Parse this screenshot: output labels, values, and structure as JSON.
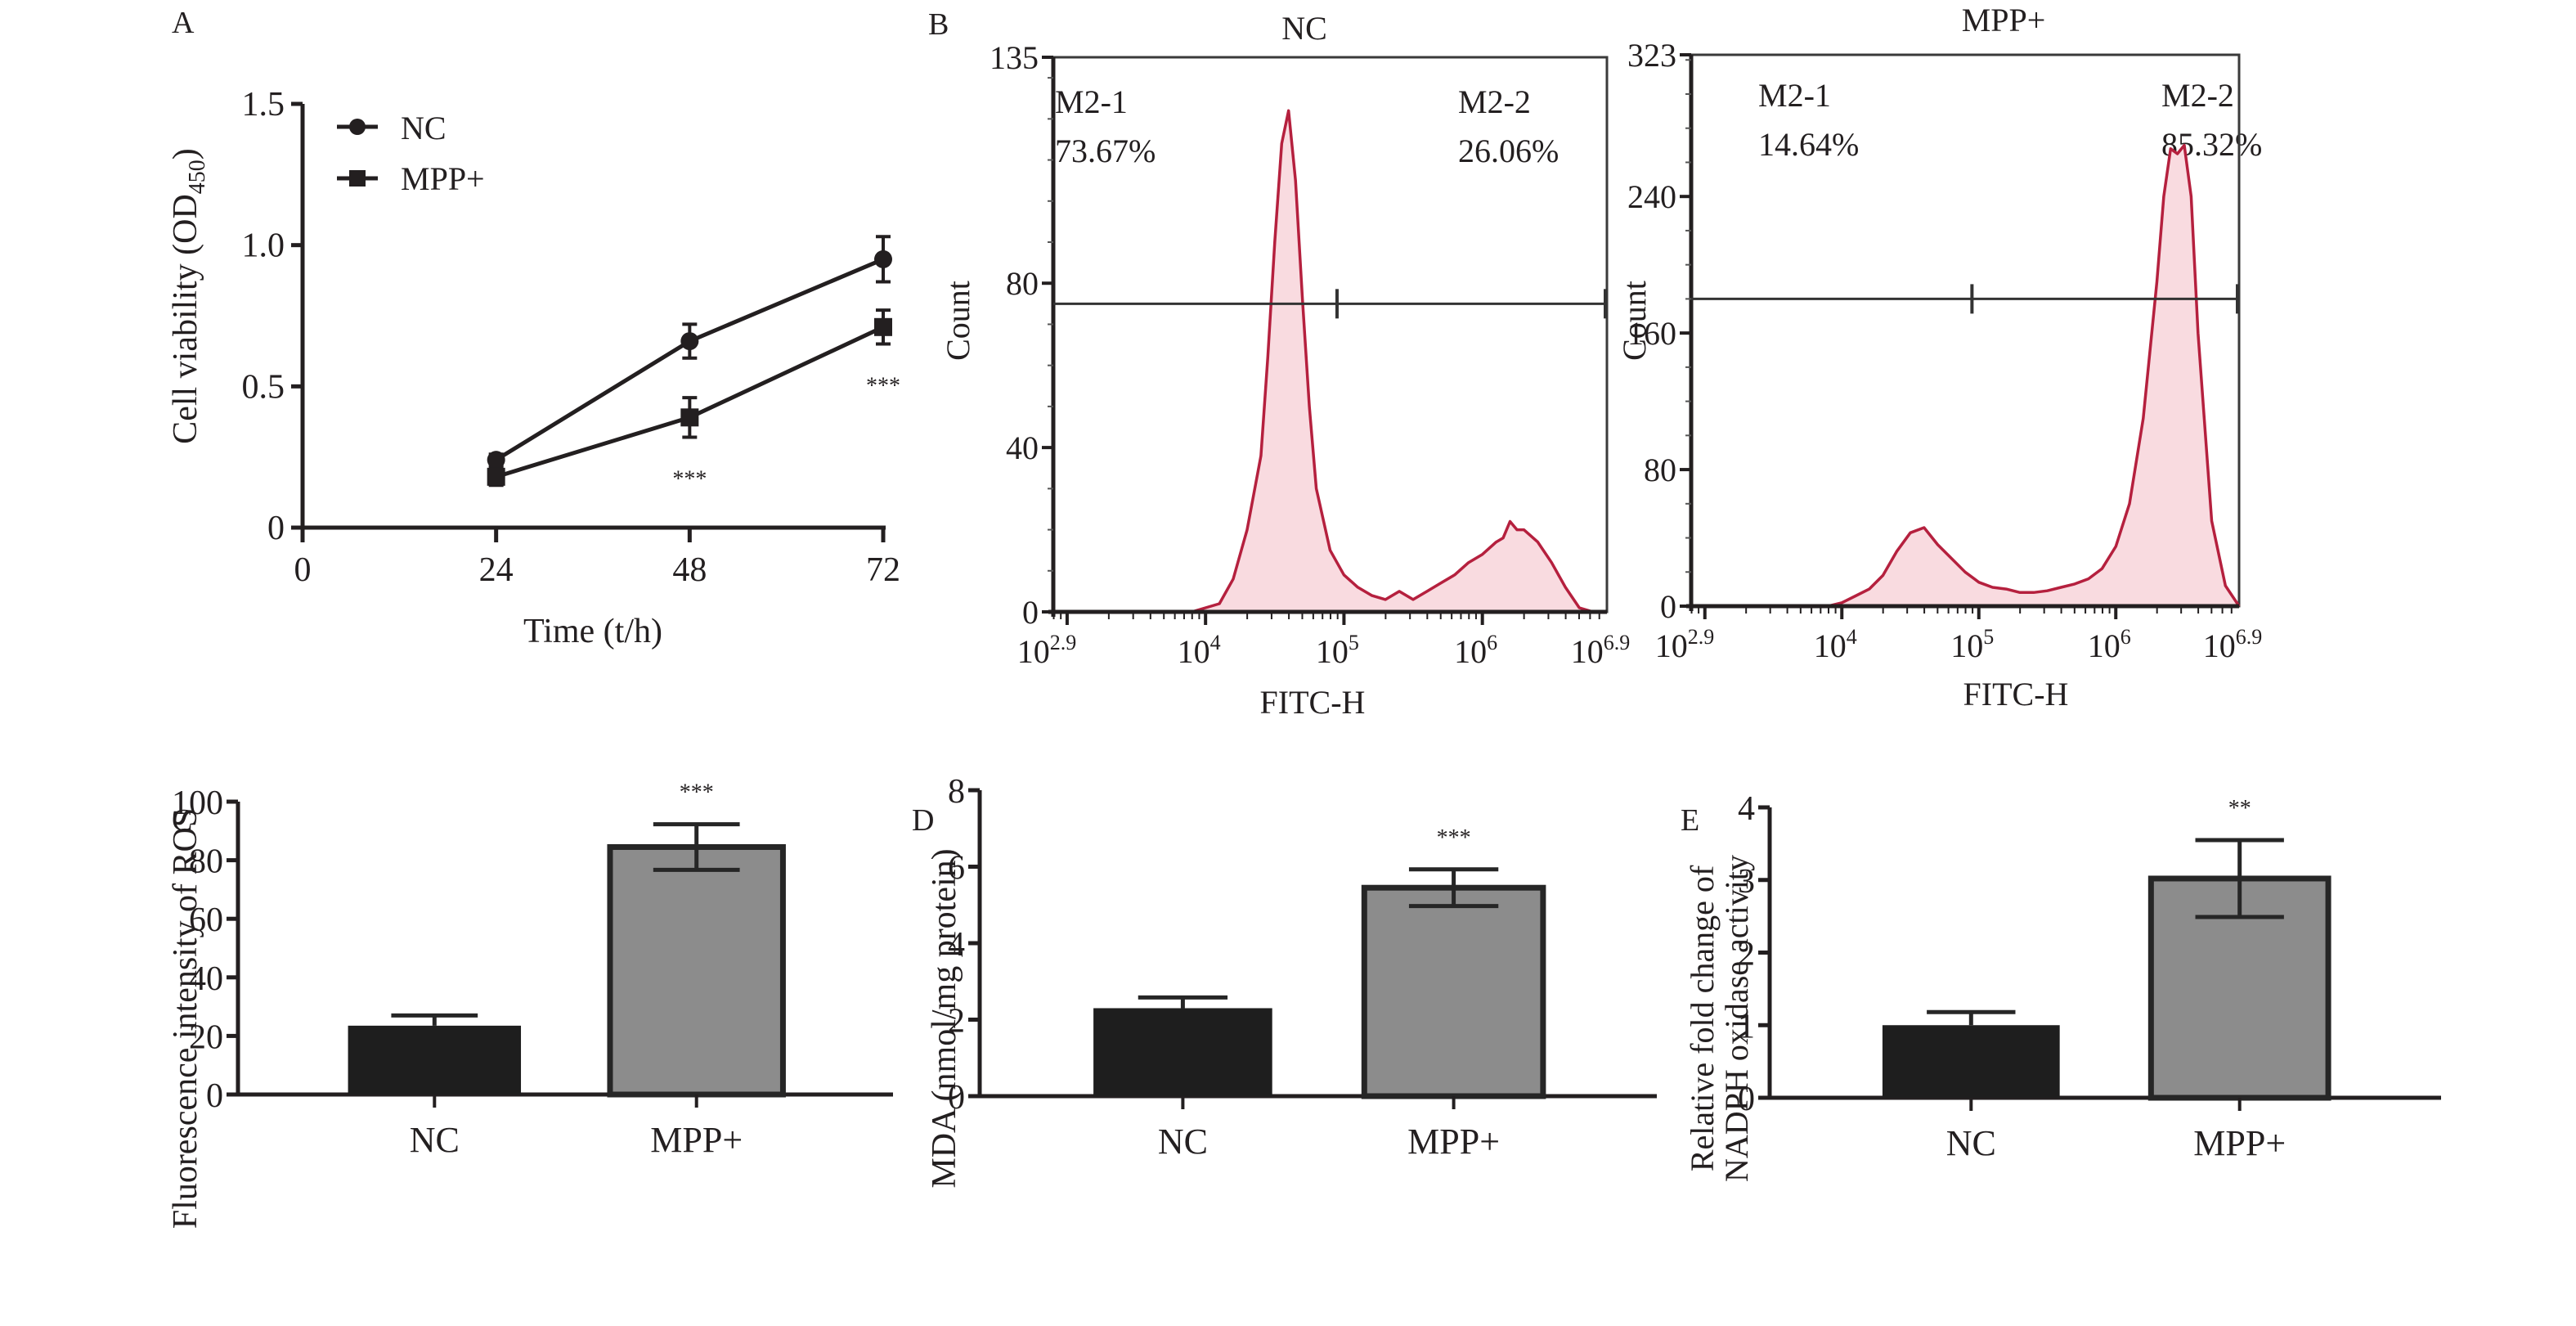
{
  "chart_data": [
    {
      "panel": "A",
      "type": "line",
      "xlabel": "Time (t/h)",
      "ylabel_main": "Cell viability (OD",
      "ylabel_sub": "450",
      "ylabel_end": ")",
      "xlim": [
        0,
        72
      ],
      "ylim": [
        0,
        1.5
      ],
      "xticks": [
        0,
        24,
        48,
        72
      ],
      "yticks": [
        "0",
        "0.5",
        "1.0",
        "1.5"
      ],
      "ytick_values": [
        0,
        0.5,
        1.0,
        1.5
      ],
      "legend_position": "top-left",
      "series": [
        {
          "name": "NC",
          "marker": "circle",
          "x": [
            24,
            48,
            72
          ],
          "y": [
            0.24,
            0.66,
            0.95
          ],
          "err": [
            0.02,
            0.06,
            0.08
          ],
          "annotations": [
            "",
            "",
            ""
          ]
        },
        {
          "name": "MPP+",
          "marker": "square",
          "x": [
            24,
            48,
            72
          ],
          "y": [
            0.18,
            0.39,
            0.71
          ],
          "err": [
            0.03,
            0.07,
            0.06
          ],
          "annotations": [
            "",
            "***",
            "***"
          ]
        }
      ]
    },
    {
      "panel": "B",
      "type": "area",
      "subtitle": "NC",
      "xlabel": "FITC-H",
      "ylabel": "Count",
      "xlim_log10": [
        2.9,
        6.9
      ],
      "ylim": [
        0,
        135
      ],
      "xticks": [
        {
          "base": "10",
          "exp": "2.9",
          "v": 2.9
        },
        {
          "base": "10",
          "exp": "4",
          "v": 4
        },
        {
          "base": "10",
          "exp": "5",
          "v": 5
        },
        {
          "base": "10",
          "exp": "6",
          "v": 6
        },
        {
          "base": "10",
          "exp": "6.9",
          "v": 6.9
        }
      ],
      "yticks": [
        0,
        40,
        80,
        135
      ],
      "gate_level": 75,
      "gate_split_log10": 4.95,
      "gates": [
        {
          "name": "M2-1",
          "percent": "73.67%"
        },
        {
          "name": "M2-2",
          "percent": "26.06%"
        }
      ],
      "fill_color": "#f9dbe0",
      "line_color": "#b5203e",
      "histogram": {
        "x_log10": [
          2.9,
          3.9,
          4.0,
          4.1,
          4.2,
          4.3,
          4.4,
          4.45,
          4.5,
          4.55,
          4.6,
          4.65,
          4.7,
          4.75,
          4.8,
          4.9,
          5.0,
          5.1,
          5.2,
          5.3,
          5.4,
          5.5,
          5.6,
          5.7,
          5.8,
          5.9,
          6.0,
          6.1,
          6.15,
          6.2,
          6.25,
          6.3,
          6.4,
          6.5,
          6.6,
          6.7,
          6.8,
          6.9
        ],
        "count": [
          0,
          0,
          1,
          2,
          8,
          20,
          38,
          62,
          90,
          114,
          122,
          105,
          76,
          50,
          30,
          15,
          9,
          6,
          4,
          3,
          5,
          3,
          5,
          7,
          9,
          12,
          14,
          17,
          18,
          22,
          20,
          20,
          17,
          12,
          6,
          1,
          0,
          0
        ]
      }
    },
    {
      "panel": "B",
      "type": "area",
      "subtitle": "MPP+",
      "xlabel": "FITC-H",
      "ylabel": "Count",
      "xlim_log10": [
        2.9,
        6.9
      ],
      "ylim": [
        0,
        323
      ],
      "xticks": [
        {
          "base": "10",
          "exp": "2.9",
          "v": 2.9
        },
        {
          "base": "10",
          "exp": "4",
          "v": 4
        },
        {
          "base": "10",
          "exp": "5",
          "v": 5
        },
        {
          "base": "10",
          "exp": "6",
          "v": 6
        },
        {
          "base": "10",
          "exp": "6.9",
          "v": 6.9
        }
      ],
      "yticks": [
        0,
        80,
        160,
        240,
        323
      ],
      "gate_level": 180,
      "gate_split_log10": 4.95,
      "gates": [
        {
          "name": "M2-1",
          "percent": "14.64%"
        },
        {
          "name": "M2-2",
          "percent": "85.32%"
        }
      ],
      "fill_color": "#f9dbe0",
      "line_color": "#b5203e",
      "histogram": {
        "x_log10": [
          2.9,
          3.9,
          4.0,
          4.1,
          4.2,
          4.3,
          4.4,
          4.5,
          4.6,
          4.7,
          4.8,
          4.9,
          5.0,
          5.1,
          5.2,
          5.3,
          5.4,
          5.5,
          5.6,
          5.7,
          5.8,
          5.9,
          6.0,
          6.1,
          6.2,
          6.3,
          6.35,
          6.4,
          6.45,
          6.5,
          6.55,
          6.6,
          6.7,
          6.8,
          6.9
        ],
        "count": [
          0,
          0,
          2,
          6,
          10,
          18,
          32,
          43,
          46,
          36,
          28,
          20,
          14,
          11,
          10,
          8,
          8,
          9,
          11,
          13,
          16,
          22,
          35,
          60,
          110,
          190,
          240,
          268,
          265,
          270,
          240,
          160,
          50,
          12,
          0
        ]
      }
    },
    {
      "panel": "C",
      "type": "bar",
      "categories": [
        "NC",
        "MPP+"
      ],
      "values": [
        23.5,
        84.5
      ],
      "errors": [
        3.5,
        7.8
      ],
      "annotations": [
        "",
        "***"
      ],
      "bar_colors": [
        "#1e1e1e",
        "#8c8c8c"
      ],
      "ylabel": "Fluorescence intensity of ROS",
      "ylim": [
        0,
        100
      ],
      "yticks": [
        0,
        20,
        40,
        60,
        80,
        100
      ]
    },
    {
      "panel": "D",
      "type": "bar",
      "categories": [
        "NC",
        "MPP+"
      ],
      "values": [
        2.3,
        5.45
      ],
      "errors": [
        0.28,
        0.48
      ],
      "annotations": [
        "",
        "***"
      ],
      "bar_colors": [
        "#1e1e1e",
        "#8c8c8c"
      ],
      "ylabel": "MDA (nmol/mg protein)",
      "ylim": [
        0,
        8
      ],
      "yticks": [
        0,
        2,
        4,
        6,
        8
      ]
    },
    {
      "panel": "E",
      "type": "bar",
      "categories": [
        "NC",
        "MPP+"
      ],
      "values": [
        1.0,
        3.02
      ],
      "errors": [
        0.18,
        0.53
      ],
      "annotations": [
        "",
        "**"
      ],
      "bar_colors": [
        "#1e1e1e",
        "#8c8c8c"
      ],
      "ylabel_line1": "Relative fold change of",
      "ylabel_line2": "NADPH oxidase activity",
      "ylim": [
        0,
        4
      ],
      "yticks": [
        0,
        1,
        2,
        3,
        4
      ]
    }
  ],
  "panel_labels": {
    "A": "A",
    "B": "B",
    "C": "C",
    "D": "D",
    "E": "E"
  }
}
